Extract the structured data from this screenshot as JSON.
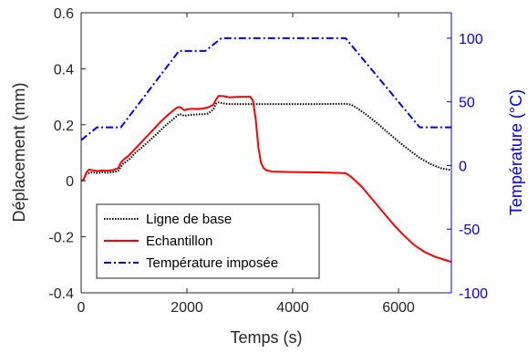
{
  "chart_data": {
    "type": "line",
    "title": "",
    "xlabel": "Temps (s)",
    "ylabel": "Déplacement (mm)",
    "ylabel_right": "Température (°C)",
    "xlim": [
      0,
      7000
    ],
    "ylim": [
      -0.4,
      0.6
    ],
    "ylim_right": [
      -100,
      120
    ],
    "xticks": [
      "0",
      "2000",
      "4000",
      "6000"
    ],
    "yticks": [
      "-0.4",
      "-0.2",
      "0",
      "0.2",
      "0.4",
      "0.6"
    ],
    "yticks_right": [
      "-100",
      "-50",
      "0",
      "50",
      "100"
    ],
    "grid": false,
    "legend_position": "bottom-left",
    "colors": {
      "left_axis": "#262626",
      "right_axis": "#0000ff"
    },
    "series": [
      {
        "name": "Ligne de base",
        "axis": "left",
        "color": "#000000",
        "style": "dotted",
        "x": [
          0,
          50,
          100,
          200,
          300,
          400,
          500,
          600,
          700,
          750,
          800,
          900,
          1000,
          1100,
          1200,
          1300,
          1400,
          1500,
          1600,
          1700,
          1800,
          1850,
          1900,
          1950,
          2000,
          2100,
          2200,
          2300,
          2400,
          2500,
          2550,
          2600,
          2700,
          2800,
          3000,
          3500,
          4000,
          4500,
          5000,
          5100,
          5200,
          5400,
          5600,
          5800,
          6000,
          6200,
          6400,
          6600,
          6800,
          7000
        ],
        "y": [
          0.0,
          0.005,
          0.025,
          0.03,
          0.028,
          0.03,
          0.029,
          0.031,
          0.035,
          0.05,
          0.062,
          0.075,
          0.095,
          0.112,
          0.128,
          0.145,
          0.162,
          0.18,
          0.198,
          0.214,
          0.23,
          0.238,
          0.236,
          0.232,
          0.234,
          0.236,
          0.237,
          0.238,
          0.24,
          0.255,
          0.275,
          0.28,
          0.276,
          0.274,
          0.274,
          0.274,
          0.274,
          0.274,
          0.275,
          0.272,
          0.262,
          0.235,
          0.205,
          0.172,
          0.14,
          0.11,
          0.082,
          0.06,
          0.045,
          0.038
        ]
      },
      {
        "name": "Echantillon",
        "axis": "left",
        "color": "#ff0000",
        "style": "solid",
        "x": [
          0,
          50,
          100,
          150,
          200,
          300,
          400,
          500,
          600,
          700,
          750,
          800,
          900,
          1000,
          1100,
          1200,
          1300,
          1400,
          1500,
          1600,
          1700,
          1800,
          1850,
          1900,
          1950,
          2000,
          2100,
          2200,
          2300,
          2400,
          2500,
          2550,
          2600,
          2700,
          2800,
          2900,
          3000,
          3100,
          3200,
          3250,
          3300,
          3350,
          3400,
          3450,
          3500,
          3600,
          3800,
          4000,
          4500,
          5000,
          5100,
          5300,
          5500,
          5700,
          5900,
          6100,
          6300,
          6500,
          6700,
          6900,
          7000
        ],
        "y": [
          0.0,
          0.005,
          0.03,
          0.04,
          0.038,
          0.035,
          0.037,
          0.036,
          0.038,
          0.045,
          0.065,
          0.075,
          0.09,
          0.11,
          0.13,
          0.15,
          0.17,
          0.19,
          0.21,
          0.228,
          0.245,
          0.26,
          0.263,
          0.26,
          0.252,
          0.255,
          0.257,
          0.256,
          0.258,
          0.262,
          0.272,
          0.29,
          0.303,
          0.302,
          0.298,
          0.299,
          0.3,
          0.3,
          0.3,
          0.285,
          0.22,
          0.12,
          0.065,
          0.045,
          0.038,
          0.033,
          0.032,
          0.031,
          0.03,
          0.027,
          0.015,
          -0.02,
          -0.065,
          -0.11,
          -0.155,
          -0.195,
          -0.23,
          -0.255,
          -0.272,
          -0.284,
          -0.29
        ]
      },
      {
        "name": "Température imposée",
        "axis": "right",
        "color": "#0000ff",
        "style": "dashdot",
        "x": [
          0,
          150,
          300,
          600,
          750,
          1850,
          2350,
          2650,
          5000,
          6400,
          6550,
          7000
        ],
        "y": [
          20,
          25,
          30,
          30,
          30,
          90,
          90,
          100,
          100,
          30,
          30,
          30
        ]
      }
    ]
  }
}
